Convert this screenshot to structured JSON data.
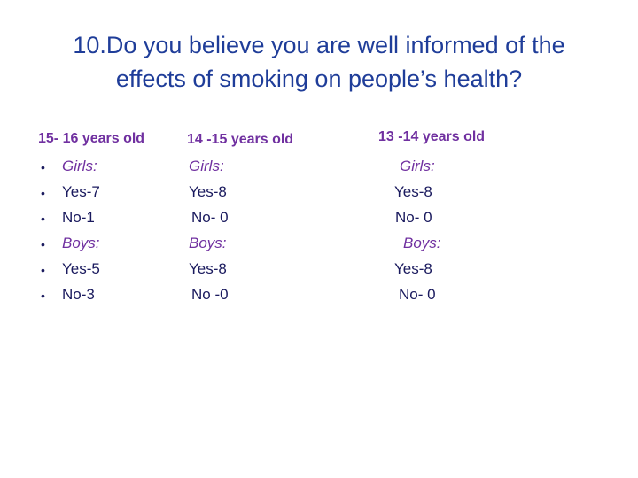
{
  "title": "10.Do you believe you are well informed of the effects of smoking on people’s health?",
  "columns": [
    {
      "heading": "15- 16 years old",
      "lines": [
        "Girls:",
        "Yes-7",
        "No-1",
        "Boys:",
        "Yes-5",
        "No-3"
      ]
    },
    {
      "heading": "14 -15 years old",
      "lines": [
        "Girls:",
        "Yes-8",
        "No- 0",
        "Boys:",
        "Yes-8",
        "No -0"
      ]
    },
    {
      "heading": "13 -14 years old",
      "lines": [
        "Girls:",
        "Yes-8",
        "No- 0",
        "Boys:",
        "Yes-8",
        "No- 0"
      ]
    }
  ],
  "colors": {
    "title": "#1f3d99",
    "heading": "#7030a0",
    "group_label": "#7030a0",
    "body": "#1a1a5e"
  }
}
